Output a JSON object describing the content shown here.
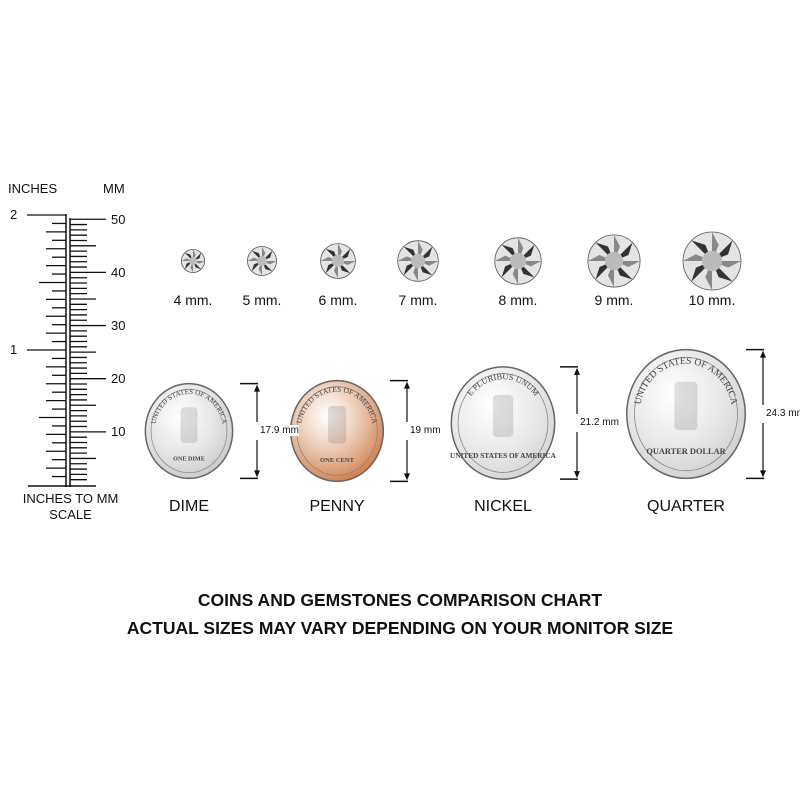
{
  "ruler": {
    "inches_label": "INCHES",
    "mm_label": "MM",
    "inch_ticks": [
      "2",
      "1"
    ],
    "mm_ticks": [
      "50",
      "40",
      "30",
      "20",
      "10"
    ],
    "caption_line1": "INCHES TO MM",
    "caption_line2": "SCALE"
  },
  "gemstones": [
    {
      "size_mm": 4,
      "label": "4 mm."
    },
    {
      "size_mm": 5,
      "label": "5 mm."
    },
    {
      "size_mm": 6,
      "label": "6 mm."
    },
    {
      "size_mm": 7,
      "label": "7 mm."
    },
    {
      "size_mm": 8,
      "label": "8 mm."
    },
    {
      "size_mm": 9,
      "label": "9 mm."
    },
    {
      "size_mm": 10,
      "label": "10 mm."
    }
  ],
  "coins": [
    {
      "name": "DIME",
      "diameter_mm": 17.9,
      "dimension_label": "17.9 mm",
      "color": "#c9c9c9",
      "rim_text": "UNITED STATES OF AMERICA",
      "bottom_text": "ONE DIME"
    },
    {
      "name": "PENNY",
      "diameter_mm": 19,
      "dimension_label": "19 mm",
      "color": "#d07a45",
      "rim_text": "UNITED STATES OF AMERICA",
      "bottom_text": "ONE CENT"
    },
    {
      "name": "NICKEL",
      "diameter_mm": 21.2,
      "dimension_label": "21.2 mm",
      "color": "#d4d4d4",
      "rim_text": "E PLURIBUS UNUM",
      "bottom_text": "UNITED STATES OF AMERICA"
    },
    {
      "name": "QUARTER",
      "diameter_mm": 24.3,
      "dimension_label": "24.3 mm",
      "color": "#cfcfcf",
      "rim_text": "UNITED STATES OF AMERICA",
      "bottom_text": "QUARTER DOLLAR"
    }
  ],
  "footer": {
    "line1": "COINS AND GEMSTONES COMPARISON CHART",
    "line2": "ACTUAL SIZES MAY VARY DEPENDING ON YOUR MONITOR SIZE"
  }
}
